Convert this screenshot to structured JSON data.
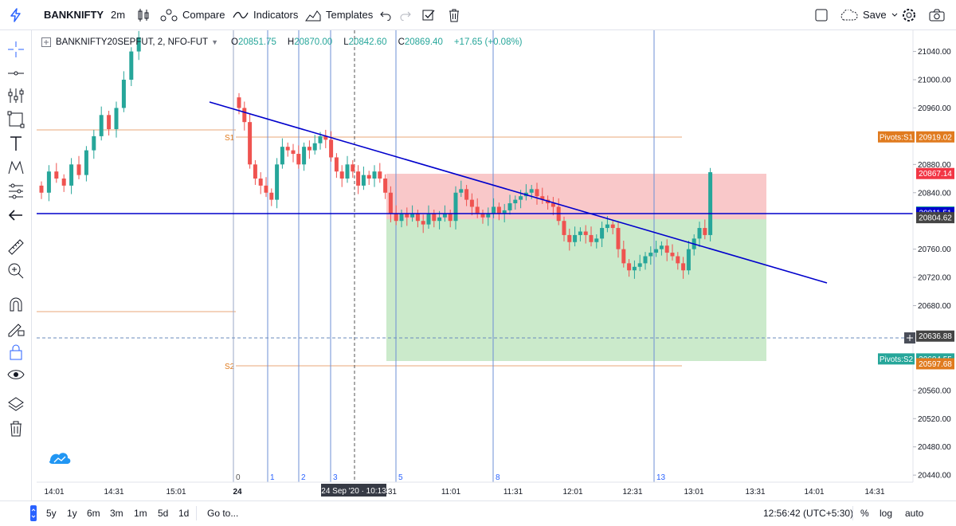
{
  "toolbar": {
    "symbol": "BANKNIFTY",
    "interval": "2m",
    "compare_label": "Compare",
    "indicators_label": "Indicators",
    "templates_label": "Templates",
    "save_label": "Save"
  },
  "legend": {
    "instrument": "BANKNIFTY20SEPFUT, 2, NFO-FUT",
    "open_label": "O",
    "open": "20851.75",
    "high_label": "H",
    "high": "20870.00",
    "low_label": "L",
    "low": "20842.60",
    "close_label": "C",
    "close": "20869.40",
    "change": "+17.65 (+0.08%)"
  },
  "colors": {
    "up": "#26a69a",
    "down": "#ef5350",
    "trendline": "#0000cc",
    "accent": "#2962ff"
  },
  "price_axis": {
    "ticks": [
      "21040.00",
      "21000.00",
      "20960.00",
      "20880.00",
      "20840.00",
      "20760.00",
      "20720.00",
      "20680.00",
      "20560.00",
      "20520.00",
      "20480.00",
      "20440.00"
    ]
  },
  "price_tags": [
    {
      "label": "Pivots:S1",
      "value": "20919.02",
      "color": "#e07b1f"
    },
    {
      "label": "",
      "value": "20867.14",
      "color": "#f23645"
    },
    {
      "label": "",
      "value": "20812.65",
      "color": "#26a69a"
    },
    {
      "label": "",
      "value": "20811.51",
      "color": "#0000cc"
    },
    {
      "label": "",
      "value": "20804.62",
      "color": "#444444"
    },
    {
      "label": "",
      "value": "20636.88",
      "color": "#444444"
    },
    {
      "label": "Pivots:S2",
      "value": "20604.55",
      "color": "#26a69a"
    },
    {
      "label": "",
      "value": "20597.68",
      "color": "#e07b1f"
    }
  ],
  "pivot_labels": {
    "s1": "S1",
    "s2": "S2"
  },
  "time_axis": {
    "ticks": [
      "14:01",
      "14:31",
      "15:01",
      "24",
      ":31",
      "11:01",
      "11:31",
      "12:01",
      "12:31",
      "13:01",
      "13:31",
      "14:01",
      "14:31"
    ],
    "crosshair_label": "24 Sep '20 · 10:13"
  },
  "vline_labels": [
    "0",
    "1",
    "2",
    "3",
    "5",
    "8",
    "13"
  ],
  "bottom": {
    "ranges": [
      "5y",
      "1y",
      "6m",
      "3m",
      "1m",
      "5d",
      "1d"
    ],
    "goto_label": "Go to...",
    "clock": "12:56:42 (UTC+5:30)",
    "percent_label": "%",
    "log_label": "log",
    "auto_label": "auto"
  },
  "chart_data": {
    "type": "candlestick",
    "symbol": "BANKNIFTY20SEPFUT",
    "interval": "2m",
    "y_range": [
      20430,
      21070
    ],
    "segment1": {
      "note": "Sep 23 14:01–14:51",
      "closes": [
        20840,
        20870,
        20860,
        20850,
        20880,
        20865,
        20900,
        20920,
        20950,
        20930,
        20960,
        21000,
        21040,
        21060
      ]
    },
    "segment2": {
      "note": "Sep 24 09:15–12:54",
      "closes": [
        20960,
        20940,
        20880,
        20860,
        20850,
        20840,
        20830,
        20880,
        20905,
        20900,
        20895,
        20880,
        20905,
        20900,
        20910,
        20920,
        20915,
        20890,
        20870,
        20860,
        20880,
        20870,
        20850,
        20865,
        20860,
        20870,
        20860,
        20840,
        20810,
        20800,
        20810,
        20805,
        20810,
        20800,
        20795,
        20810,
        20800,
        20805,
        20810,
        20800,
        20840,
        20845,
        20830,
        20820,
        20810,
        20805,
        20810,
        20820,
        20810,
        20815,
        20825,
        20830,
        20835,
        20840,
        20845,
        20835,
        20830,
        20825,
        20820,
        20800,
        20780,
        20770,
        20780,
        20785,
        20780,
        20770,
        20775,
        20790,
        20795,
        20790,
        20760,
        20740,
        20730,
        20735,
        20740,
        20750,
        20755,
        20760,
        20765,
        20755,
        20750,
        20740,
        20730,
        20760,
        20775,
        20790,
        20780,
        20869
      ]
    }
  }
}
